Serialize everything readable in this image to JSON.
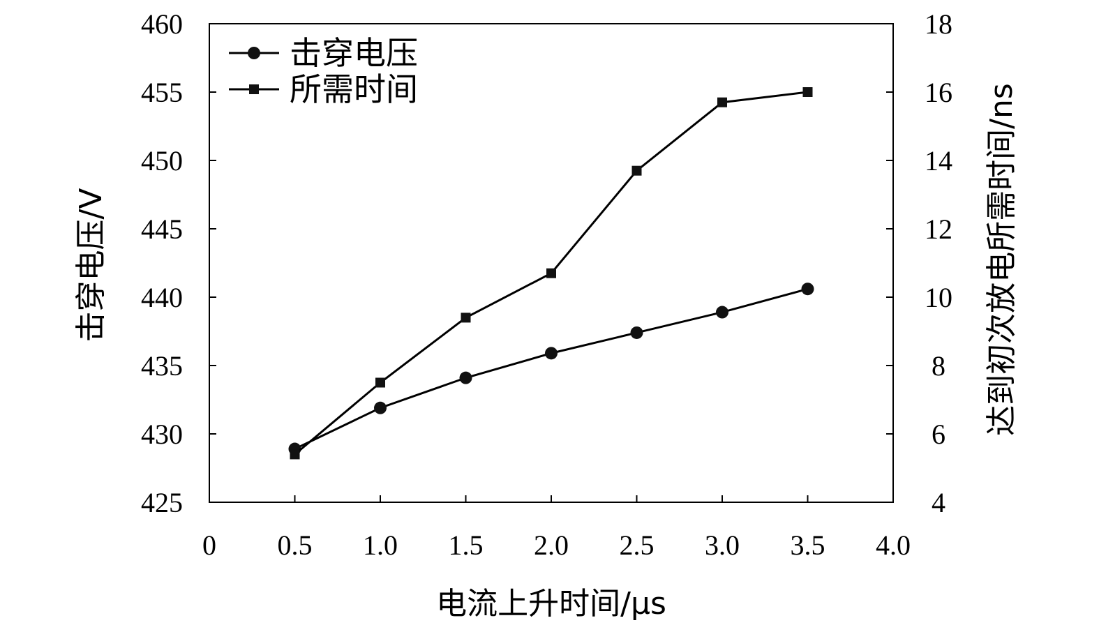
{
  "chart_data": {
    "type": "line",
    "xlabel": "电流上升时间/μs",
    "ylabel_left": "击穿电压/V",
    "ylabel_right": "达到初次放电所需时间/ns",
    "xlim": [
      0,
      4.0
    ],
    "ylim_left": [
      425,
      460
    ],
    "ylim_right": [
      4,
      18
    ],
    "x_ticks": [
      "0",
      "0.5",
      "1.0",
      "1.5",
      "2.0",
      "2.5",
      "3.0",
      "3.5",
      "4.0"
    ],
    "y_ticks_left": [
      "425",
      "430",
      "435",
      "440",
      "445",
      "450",
      "455",
      "460"
    ],
    "y_ticks_right": [
      "4",
      "6",
      "8",
      "10",
      "12",
      "14",
      "16",
      "18"
    ],
    "legend_position": "top-left",
    "grid": false,
    "series": [
      {
        "name": "击穿电压",
        "axis": "left",
        "marker": "circle",
        "x": [
          0.5,
          1.0,
          1.5,
          2.0,
          2.5,
          3.0,
          3.5
        ],
        "values": [
          428.9,
          431.9,
          434.1,
          435.9,
          437.4,
          438.9,
          440.6
        ]
      },
      {
        "name": "所需时间",
        "axis": "right",
        "marker": "square",
        "x": [
          0.5,
          1.0,
          1.5,
          2.0,
          2.5,
          3.0,
          3.5
        ],
        "values": [
          5.4,
          7.5,
          9.4,
          10.7,
          13.7,
          15.7,
          16.0
        ]
      }
    ]
  }
}
